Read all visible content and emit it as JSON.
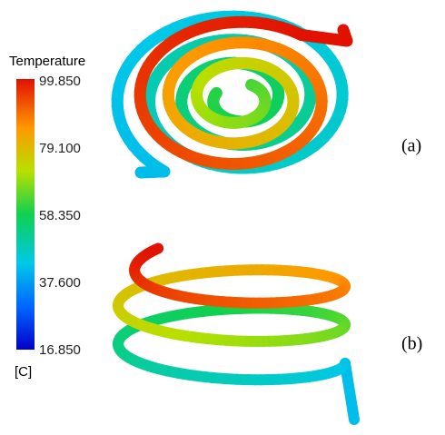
{
  "colorbar": {
    "title": "Temperature",
    "ticks": [
      "99.850",
      "79.100",
      "58.350",
      "37.600",
      "16.850"
    ],
    "unit": "[C]"
  },
  "panels": [
    {
      "label": "(a)"
    },
    {
      "label": "(b)"
    }
  ]
}
